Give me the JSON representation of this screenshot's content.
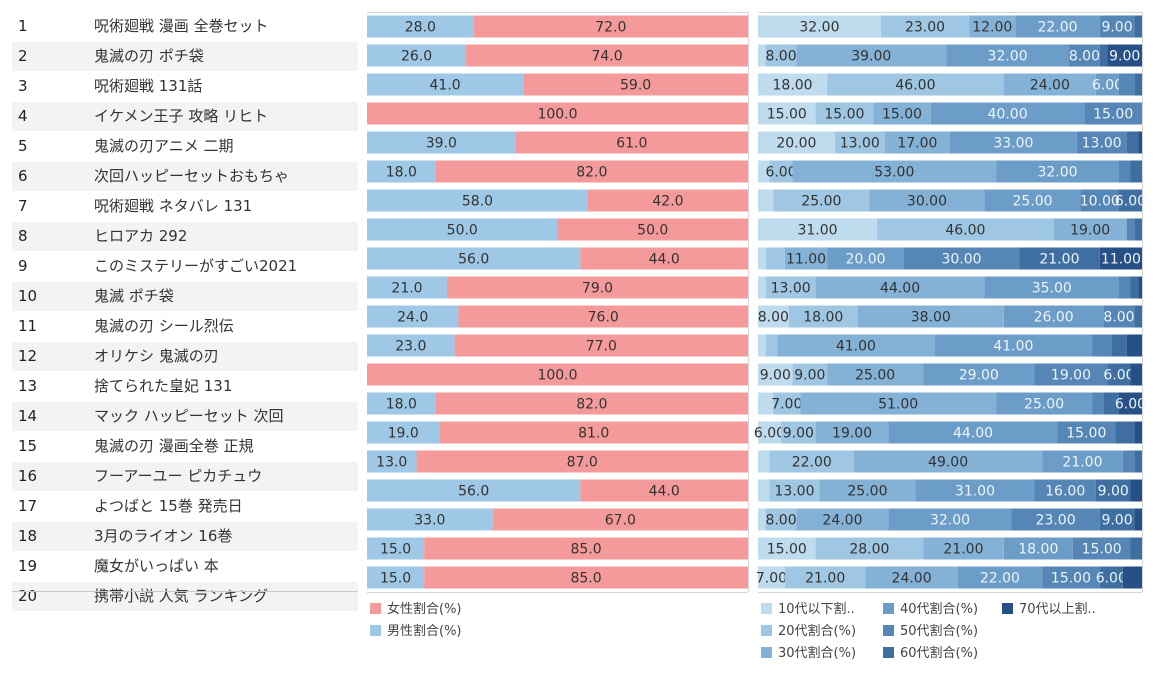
{
  "rows": [
    {
      "rank": "1",
      "keyword": "呪術廻戦 漫画 全巻セット"
    },
    {
      "rank": "2",
      "keyword": "鬼滅の刃 ポチ袋"
    },
    {
      "rank": "3",
      "keyword": "呪術廻戦 131話"
    },
    {
      "rank": "4",
      "keyword": "イケメン王子 攻略 リヒト"
    },
    {
      "rank": "5",
      "keyword": "鬼滅の刃アニメ 二期"
    },
    {
      "rank": "6",
      "keyword": "次回ハッピーセットおもちゃ"
    },
    {
      "rank": "7",
      "keyword": "呪術廻戦 ネタバレ 131"
    },
    {
      "rank": "8",
      "keyword": "ヒロアカ 292"
    },
    {
      "rank": "9",
      "keyword": "このミステリーがすごい2021"
    },
    {
      "rank": "10",
      "keyword": "鬼滅 ポチ袋"
    },
    {
      "rank": "11",
      "keyword": "鬼滅の刃 シール烈伝"
    },
    {
      "rank": "12",
      "keyword": "オリケシ 鬼滅の刃"
    },
    {
      "rank": "13",
      "keyword": "捨てられた皇妃 131"
    },
    {
      "rank": "14",
      "keyword": "マック ハッピーセット 次回"
    },
    {
      "rank": "15",
      "keyword": "鬼滅の刃 漫画全巻 正規"
    },
    {
      "rank": "16",
      "keyword": "フーアーユー ピカチュウ"
    },
    {
      "rank": "17",
      "keyword": "よつばと 15巻 発売日"
    },
    {
      "rank": "18",
      "keyword": "3月のライオン 16巻"
    },
    {
      "rank": "19",
      "keyword": "魔女がいっぱい 本"
    },
    {
      "rank": "20",
      "keyword": "携帯小説 人気 ランキング"
    }
  ],
  "chart_data": [
    {
      "type": "bar",
      "stacked": true,
      "orientation": "horizontal",
      "normalized_to": 100,
      "categories": [
        "1",
        "2",
        "3",
        "4",
        "5",
        "6",
        "7",
        "8",
        "9",
        "10",
        "11",
        "12",
        "13",
        "14",
        "15",
        "16",
        "17",
        "18",
        "19",
        "20"
      ],
      "series": [
        {
          "name": "男性割合(%)",
          "color": "#9ec8e6",
          "values": [
            28,
            26,
            41,
            0,
            39,
            18,
            58,
            50,
            56,
            21,
            24,
            23,
            0,
            18,
            19,
            13,
            56,
            33,
            15,
            15
          ]
        },
        {
          "name": "女性割合(%)",
          "color": "#f59a9a",
          "values": [
            72,
            74,
            59,
            100,
            61,
            82,
            42,
            50,
            44,
            79,
            76,
            77,
            100,
            82,
            81,
            87,
            44,
            67,
            85,
            85
          ]
        }
      ],
      "legend": [
        "女性割合(%)",
        "男性割合(%)"
      ],
      "legend_placement": "bottom"
    },
    {
      "type": "bar",
      "stacked": true,
      "orientation": "horizontal",
      "normalized_to": 100,
      "categories": [
        "1",
        "2",
        "3",
        "4",
        "5",
        "6",
        "7",
        "8",
        "9",
        "10",
        "11",
        "12",
        "13",
        "14",
        "15",
        "16",
        "17",
        "18",
        "19",
        "20"
      ],
      "series": [
        {
          "name": "10代以下割..",
          "color": "#bedcee",
          "values": [
            32,
            2,
            18,
            15,
            20,
            3,
            4,
            31,
            2,
            2,
            8,
            2,
            9,
            4,
            6,
            3,
            3,
            2,
            15,
            7
          ]
        },
        {
          "name": "20代割合(%)",
          "color": "#9fc6e2",
          "values": [
            23,
            8,
            46,
            15,
            13,
            6,
            25,
            46,
            5,
            13,
            18,
            3,
            9,
            7,
            9,
            22,
            13,
            8,
            28,
            21
          ]
        },
        {
          "name": "30代割合(%)",
          "color": "#84b2d6",
          "values": [
            12,
            39,
            24,
            15,
            17,
            53,
            30,
            19,
            11,
            44,
            38,
            41,
            25,
            51,
            19,
            49,
            25,
            24,
            21,
            24
          ]
        },
        {
          "name": "40代割合(%)",
          "color": "#6b9dc8",
          "values": [
            22,
            32,
            6,
            40,
            33,
            32,
            25,
            0,
            20,
            35,
            26,
            41,
            29,
            25,
            44,
            21,
            31,
            32,
            18,
            22
          ]
        },
        {
          "name": "50代割合(%)",
          "color": "#5586b6",
          "values": [
            9,
            8,
            4,
            15,
            13,
            3,
            10,
            2,
            30,
            3,
            8,
            5,
            19,
            3,
            15,
            3,
            16,
            23,
            15,
            15
          ]
        },
        {
          "name": "60代割合(%)",
          "color": "#3f6fa1",
          "values": [
            2,
            2,
            2,
            0,
            3,
            3,
            6,
            2,
            21,
            2,
            2,
            4,
            6,
            4,
            5,
            2,
            9,
            9,
            3,
            6
          ]
        },
        {
          "name": "70代以上割..",
          "color": "#275186",
          "values": [
            0,
            9,
            0,
            0,
            1,
            0,
            0,
            0,
            11,
            1,
            0,
            4,
            3,
            6,
            2,
            0,
            3,
            2,
            0,
            5
          ]
        }
      ],
      "legend": [
        "10代以下割..",
        "20代割合(%)",
        "30代割合(%)",
        "40代割合(%)",
        "50代割合(%)",
        "60代割合(%)",
        "70代以上割.."
      ],
      "legend_placement": "bottom"
    }
  ]
}
